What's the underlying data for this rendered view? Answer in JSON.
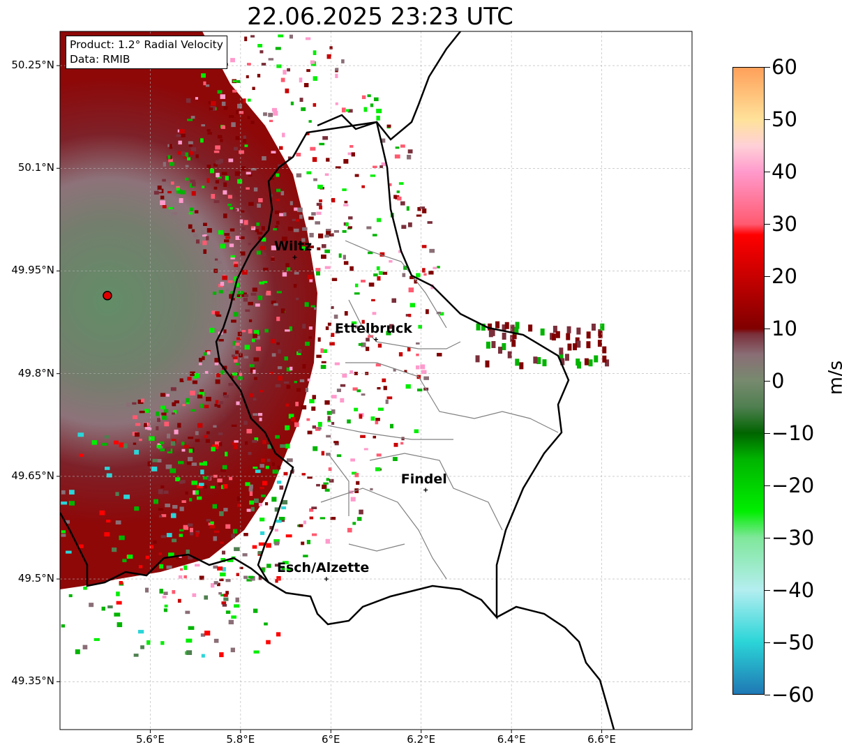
{
  "title": "22.06.2025 23:23 UTC",
  "info_box": {
    "product": "Product: 1.2° Radial Velocity",
    "data_source": "Data: RMIB"
  },
  "map_extent": {
    "lon_min": 5.4,
    "lon_max": 6.8,
    "lat_min": 49.28,
    "lat_max": 50.3
  },
  "lat_labels": [
    "50.25°N",
    "50.1°N",
    "49.95°N",
    "49.8°N",
    "49.65°N",
    "49.5°N",
    "49.35°N"
  ],
  "lon_labels": [
    "5.6°E",
    "5.8°E",
    "6°E",
    "6.2°E",
    "6.4°E",
    "6.6°E"
  ],
  "radar_site": {
    "lon": 5.505,
    "lat": 49.914,
    "color": "#e00000"
  },
  "cities": [
    {
      "name": "Wiltz",
      "lon": 5.92,
      "lat": 49.97
    },
    {
      "name": "Ettelbruck",
      "lon": 6.1,
      "lat": 49.85
    },
    {
      "name": "Findel",
      "lon": 6.21,
      "lat": 49.63
    },
    {
      "name": "Esch/Alzette",
      "lon": 5.99,
      "lat": 49.5
    }
  ],
  "colorbar": {
    "unit": "m/s",
    "min": -60,
    "max": 60,
    "tick_labels": [
      "60",
      "50",
      "40",
      "30",
      "20",
      "10",
      "0",
      "−10",
      "−20",
      "−30",
      "−40",
      "−50",
      "−60"
    ],
    "colors": {
      "neg_60": "#1f78b4",
      "neg_50": "#2bd5d8",
      "neg_40": "#b4eef0",
      "neg_30": "#7fe79a",
      "neg_25": "#00ee00",
      "neg_15": "#00b400",
      "neg_10": "#006400",
      "neg_5": "#4f7f50",
      "zero": "#778a6e",
      "pos_5": "#8a6e76",
      "pos_9": "#7a2f3a",
      "pos_10": "#800000",
      "pos_20": "#c80000",
      "pos_28": "#ff0000",
      "pos_30": "#ff5a70",
      "pos_40": "#ff9acc",
      "pos_45": "#ffd0d8",
      "pos_50": "#ffe29a",
      "pos_60": "#ffa05a"
    }
  },
  "colors": {
    "border_country": "#000000",
    "border_canton": "#808080",
    "grid": "#b0b0b0"
  }
}
